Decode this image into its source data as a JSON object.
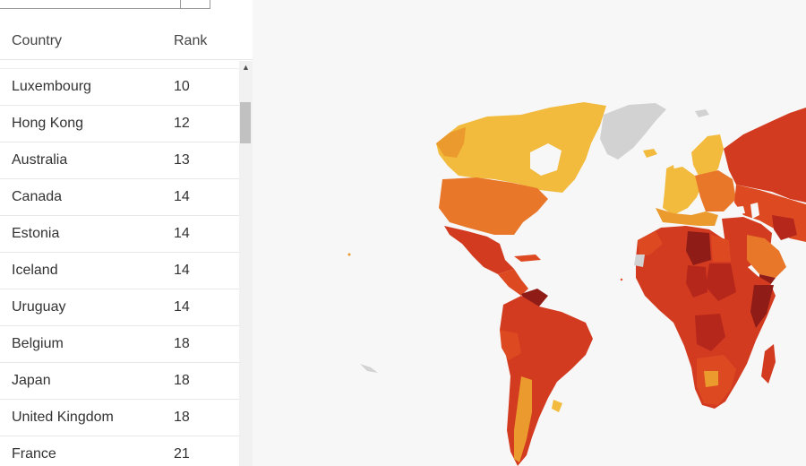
{
  "table": {
    "columns": {
      "country": "Country",
      "rank": "Rank"
    },
    "rows": [
      {
        "country": "Luxembourg",
        "rank": "10"
      },
      {
        "country": "Hong Kong",
        "rank": "12"
      },
      {
        "country": "Australia",
        "rank": "13"
      },
      {
        "country": "Canada",
        "rank": "14"
      },
      {
        "country": "Estonia",
        "rank": "14"
      },
      {
        "country": "Iceland",
        "rank": "14"
      },
      {
        "country": "Uruguay",
        "rank": "14"
      },
      {
        "country": "Belgium",
        "rank": "18"
      },
      {
        "country": "Japan",
        "rank": "18"
      },
      {
        "country": "United Kingdom",
        "rank": "18"
      },
      {
        "country": "France",
        "rank": "21"
      }
    ]
  },
  "map": {
    "colors": {
      "background": "#f7f7f7",
      "no_data": "#d2d2d2",
      "light": "#f2bb3d",
      "light_orange": "#eb9a2e",
      "orange": "#e8772a",
      "red_orange": "#dd4a22",
      "red": "#d33b20",
      "dark_red": "#b5271b",
      "deep_red": "#8f1c17"
    }
  }
}
